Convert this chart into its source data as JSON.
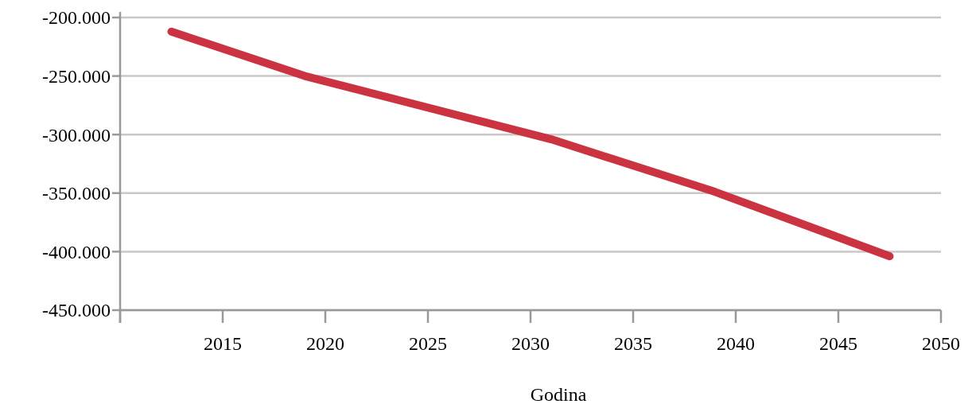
{
  "chart_data": {
    "type": "line",
    "xlabel": "Godina",
    "x": [
      2012.5,
      2019,
      2031,
      2039,
      2047.5
    ],
    "series": [
      {
        "color": "#cc3340",
        "values": [
          -212,
          -250,
          -304,
          -349,
          -404
        ]
      }
    ],
    "xlim": [
      2010,
      2050
    ],
    "xticks": [
      {
        "value": 2010,
        "label": null
      },
      2015,
      2020,
      2025,
      2030,
      2035,
      2040,
      2045,
      2050
    ],
    "ylim": [
      -450,
      -200
    ],
    "yticks": [
      {
        "value": -450,
        "label": "-450.000"
      },
      {
        "value": -400,
        "label": "-400.000"
      },
      {
        "value": -350,
        "label": "-350.000"
      },
      {
        "value": -300,
        "label": "-300.000"
      },
      {
        "value": -250,
        "label": "-250.000"
      },
      {
        "value": -200,
        "label": "-200.000"
      }
    ],
    "grid": "y",
    "marker": "none",
    "line_style": "solid"
  }
}
